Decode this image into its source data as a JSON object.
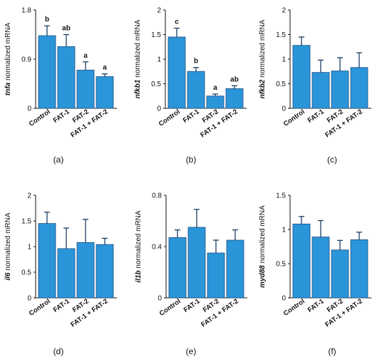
{
  "colors": {
    "bar": "#2b95d9",
    "bar_edge": "#1f4f80",
    "error": "#1b3f66",
    "axis": "#111111"
  },
  "chart_data": [
    {
      "type": "bar",
      "panel": "(a)",
      "gene": "tnfa",
      "ylabel_suffix": " normalized mRNA",
      "categories": [
        "Control",
        "FAT-1",
        "FAT-2",
        "FAT-1 + FAT-2"
      ],
      "values": [
        1.33,
        1.13,
        0.7,
        0.58
      ],
      "errors": [
        0.18,
        0.22,
        0.15,
        0.05
      ],
      "significance": [
        "b",
        "ab",
        "a",
        "a"
      ],
      "ylim": [
        0,
        1.8
      ],
      "yticks": [
        "0",
        "0.9",
        "1.8"
      ]
    },
    {
      "type": "bar",
      "panel": "(b)",
      "gene": "nfkb1",
      "ylabel_suffix": " normalized mRNA",
      "categories": [
        "Control",
        "FAT-1",
        "FAT-2",
        "FAT-1 + FAT-2"
      ],
      "values": [
        1.45,
        0.75,
        0.25,
        0.4
      ],
      "errors": [
        0.18,
        0.08,
        0.04,
        0.06
      ],
      "significance": [
        "c",
        "b",
        "a",
        "ab"
      ],
      "ylim": [
        0,
        2
      ],
      "yticks": [
        "0",
        "0.5",
        "1",
        "1.5",
        "2"
      ]
    },
    {
      "type": "bar",
      "panel": "(c)",
      "gene": "nfkb2",
      "ylabel_suffix": " normalized mRNA",
      "categories": [
        "Control",
        "FAT-1",
        "FAT-2",
        "FAT-1 + FAT-2"
      ],
      "values": [
        1.28,
        0.73,
        0.76,
        0.83
      ],
      "errors": [
        0.17,
        0.25,
        0.27,
        0.3
      ],
      "significance": [
        "",
        "",
        "",
        ""
      ],
      "ylim": [
        0,
        2
      ],
      "yticks": [
        "0",
        "0.5",
        "1",
        "1.5",
        "2"
      ]
    },
    {
      "type": "bar",
      "panel": "(d)",
      "gene": "il6",
      "ylabel_suffix": " normalized mRNA",
      "categories": [
        "Control",
        "FAT-1",
        "FAT-2",
        "FAT-1 + FAT-2"
      ],
      "values": [
        1.45,
        0.96,
        1.08,
        1.04
      ],
      "errors": [
        0.22,
        0.4,
        0.45,
        0.12
      ],
      "significance": [
        "",
        "",
        "",
        ""
      ],
      "ylim": [
        0,
        2
      ],
      "yticks": [
        "0",
        "0.5",
        "1",
        "1.5",
        "2"
      ]
    },
    {
      "type": "bar",
      "panel": "(e)",
      "gene": "il1b",
      "ylabel_suffix": " normalized mRNA",
      "categories": [
        "Control",
        "FAT-1",
        "FAT-2",
        "FAT-1 + FAT-2"
      ],
      "values": [
        0.47,
        0.55,
        0.35,
        0.45
      ],
      "errors": [
        0.06,
        0.14,
        0.1,
        0.08
      ],
      "significance": [
        "",
        "",
        "",
        ""
      ],
      "ylim": [
        0,
        0.8
      ],
      "yticks": [
        "0",
        "0.4",
        "0.8"
      ]
    },
    {
      "type": "bar",
      "panel": "(f)",
      "gene": "myd88",
      "ylabel_suffix": " normalized mRNA",
      "categories": [
        "Control",
        "FAT-1",
        "FAT-2",
        "FAT-1 + FAT-2"
      ],
      "values": [
        1.08,
        0.89,
        0.7,
        0.85
      ],
      "errors": [
        0.11,
        0.24,
        0.14,
        0.11
      ],
      "significance": [
        "",
        "",
        "",
        ""
      ],
      "ylim": [
        0,
        1.5
      ],
      "yticks": [
        "0",
        "0.5",
        "1",
        "1.5"
      ]
    }
  ]
}
